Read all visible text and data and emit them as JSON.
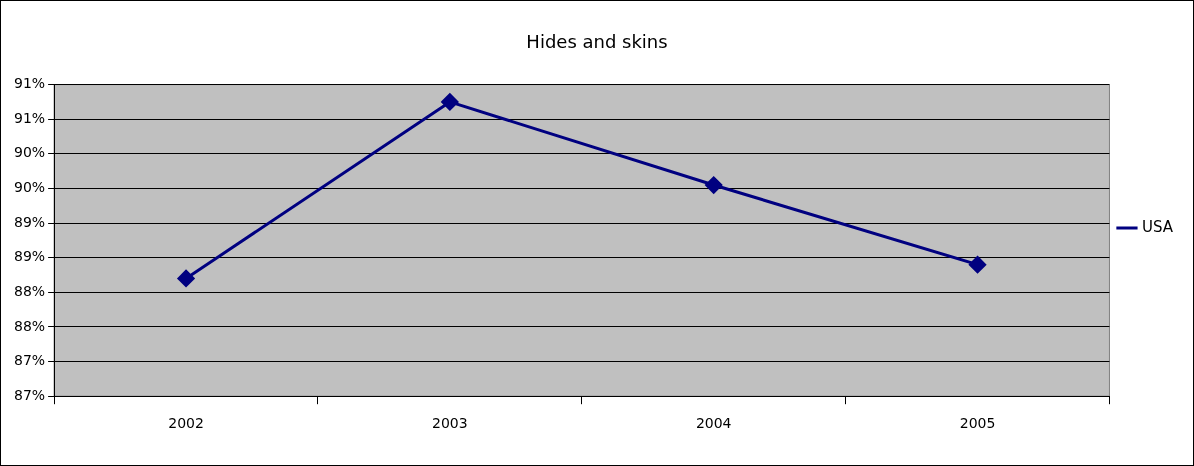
{
  "chart_data": {
    "type": "line",
    "title": "Hides and skins",
    "categories": [
      "2002",
      "2003",
      "2004",
      "2005"
    ],
    "series": [
      {
        "name": "USA",
        "color": "#000080",
        "values": [
          88.2,
          90.75,
          89.55,
          88.4
        ]
      }
    ],
    "ylim": [
      86.5,
      91
    ],
    "yticks": [
      {
        "value": 86.5,
        "label": "87%"
      },
      {
        "value": 87,
        "label": "87%"
      },
      {
        "value": 87.5,
        "label": "88%"
      },
      {
        "value": 88,
        "label": "88%"
      },
      {
        "value": 88.5,
        "label": "89%"
      },
      {
        "value": 89,
        "label": "89%"
      },
      {
        "value": 89.5,
        "label": "90%"
      },
      {
        "value": 90,
        "label": "90%"
      },
      {
        "value": 90.5,
        "label": "91%"
      },
      {
        "value": 91,
        "label": "91%"
      }
    ],
    "grid": "y",
    "legend": "right",
    "marker": "diamond",
    "line_style": "solid"
  }
}
